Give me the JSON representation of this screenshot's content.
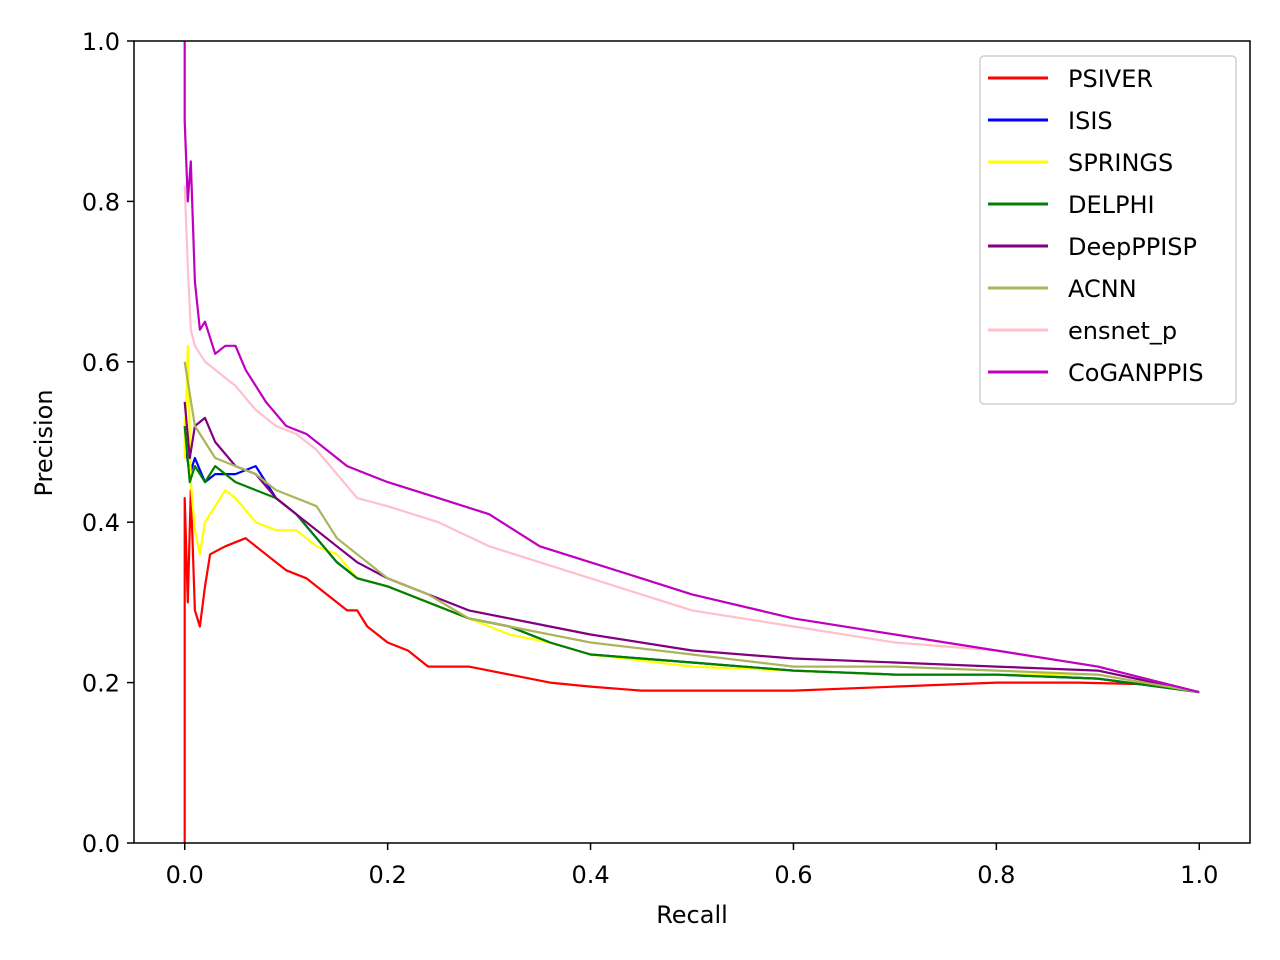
{
  "chart_data": {
    "type": "line",
    "title": "",
    "xlabel": "Recall",
    "ylabel": "Precision",
    "xlim": [
      -0.05,
      1.05
    ],
    "ylim": [
      0.0,
      1.0
    ],
    "xticks": [
      "0.0",
      "0.2",
      "0.4",
      "0.6",
      "0.8",
      "1.0"
    ],
    "yticks": [
      "0.0",
      "0.2",
      "0.4",
      "0.6",
      "0.8",
      "1.0"
    ],
    "grid": false,
    "legend_position": "top-right",
    "series": [
      {
        "name": "PSIVER",
        "color": "#ff0000",
        "points": [
          [
            0.0,
            0.0
          ],
          [
            0.0,
            0.43
          ],
          [
            0.003,
            0.3
          ],
          [
            0.006,
            0.44
          ],
          [
            0.01,
            0.29
          ],
          [
            0.015,
            0.27
          ],
          [
            0.02,
            0.32
          ],
          [
            0.025,
            0.36
          ],
          [
            0.04,
            0.37
          ],
          [
            0.06,
            0.38
          ],
          [
            0.08,
            0.36
          ],
          [
            0.1,
            0.34
          ],
          [
            0.12,
            0.33
          ],
          [
            0.14,
            0.31
          ],
          [
            0.16,
            0.29
          ],
          [
            0.17,
            0.29
          ],
          [
            0.18,
            0.27
          ],
          [
            0.2,
            0.25
          ],
          [
            0.22,
            0.24
          ],
          [
            0.24,
            0.22
          ],
          [
            0.28,
            0.22
          ],
          [
            0.32,
            0.21
          ],
          [
            0.36,
            0.2
          ],
          [
            0.4,
            0.195
          ],
          [
            0.45,
            0.19
          ],
          [
            0.5,
            0.19
          ],
          [
            0.55,
            0.19
          ],
          [
            0.6,
            0.19
          ],
          [
            0.7,
            0.195
          ],
          [
            0.8,
            0.2
          ],
          [
            0.88,
            0.2
          ],
          [
            0.95,
            0.198
          ],
          [
            1.0,
            0.188
          ]
        ]
      },
      {
        "name": "ISIS",
        "color": "#0000ff",
        "points": [
          [
            0.0,
            0.5
          ],
          [
            0.005,
            0.46
          ],
          [
            0.01,
            0.48
          ],
          [
            0.02,
            0.45
          ],
          [
            0.03,
            0.46
          ],
          [
            0.05,
            0.46
          ],
          [
            0.07,
            0.47
          ],
          [
            0.09,
            0.43
          ],
          [
            0.11,
            0.41
          ],
          [
            0.13,
            0.38
          ],
          [
            0.15,
            0.35
          ],
          [
            0.17,
            0.33
          ],
          [
            0.2,
            0.32
          ],
          [
            0.24,
            0.3
          ],
          [
            0.28,
            0.28
          ],
          [
            0.32,
            0.27
          ],
          [
            0.36,
            0.25
          ],
          [
            0.4,
            0.235
          ],
          [
            0.5,
            0.225
          ],
          [
            0.6,
            0.215
          ],
          [
            0.7,
            0.21
          ],
          [
            0.8,
            0.21
          ],
          [
            0.9,
            0.205
          ],
          [
            1.0,
            0.188
          ]
        ]
      },
      {
        "name": "SPRINGS",
        "color": "#ffff00",
        "points": [
          [
            0.0,
            0.53
          ],
          [
            0.0,
            0.48
          ],
          [
            0.003,
            0.62
          ],
          [
            0.006,
            0.45
          ],
          [
            0.01,
            0.39
          ],
          [
            0.015,
            0.36
          ],
          [
            0.02,
            0.4
          ],
          [
            0.03,
            0.42
          ],
          [
            0.04,
            0.44
          ],
          [
            0.05,
            0.43
          ],
          [
            0.07,
            0.4
          ],
          [
            0.09,
            0.39
          ],
          [
            0.11,
            0.39
          ],
          [
            0.13,
            0.37
          ],
          [
            0.15,
            0.36
          ],
          [
            0.17,
            0.33
          ],
          [
            0.2,
            0.32
          ],
          [
            0.24,
            0.3
          ],
          [
            0.28,
            0.28
          ],
          [
            0.32,
            0.26
          ],
          [
            0.36,
            0.25
          ],
          [
            0.4,
            0.235
          ],
          [
            0.5,
            0.22
          ],
          [
            0.6,
            0.215
          ],
          [
            0.7,
            0.21
          ],
          [
            0.8,
            0.21
          ],
          [
            0.9,
            0.21
          ],
          [
            1.0,
            0.188
          ]
        ]
      },
      {
        "name": "DELPHI",
        "color": "#008000",
        "points": [
          [
            0.0,
            0.52
          ],
          [
            0.005,
            0.45
          ],
          [
            0.01,
            0.47
          ],
          [
            0.02,
            0.45
          ],
          [
            0.03,
            0.47
          ],
          [
            0.05,
            0.45
          ],
          [
            0.07,
            0.44
          ],
          [
            0.09,
            0.43
          ],
          [
            0.11,
            0.41
          ],
          [
            0.13,
            0.38
          ],
          [
            0.15,
            0.35
          ],
          [
            0.17,
            0.33
          ],
          [
            0.2,
            0.32
          ],
          [
            0.24,
            0.3
          ],
          [
            0.28,
            0.28
          ],
          [
            0.32,
            0.27
          ],
          [
            0.36,
            0.25
          ],
          [
            0.4,
            0.235
          ],
          [
            0.5,
            0.225
          ],
          [
            0.6,
            0.215
          ],
          [
            0.7,
            0.21
          ],
          [
            0.8,
            0.21
          ],
          [
            0.9,
            0.205
          ],
          [
            1.0,
            0.188
          ]
        ]
      },
      {
        "name": "DeepPPISP",
        "color": "#800080",
        "points": [
          [
            0.0,
            0.55
          ],
          [
            0.005,
            0.48
          ],
          [
            0.01,
            0.52
          ],
          [
            0.02,
            0.53
          ],
          [
            0.03,
            0.5
          ],
          [
            0.05,
            0.47
          ],
          [
            0.07,
            0.46
          ],
          [
            0.09,
            0.43
          ],
          [
            0.11,
            0.41
          ],
          [
            0.13,
            0.39
          ],
          [
            0.15,
            0.37
          ],
          [
            0.17,
            0.35
          ],
          [
            0.2,
            0.33
          ],
          [
            0.24,
            0.31
          ],
          [
            0.28,
            0.29
          ],
          [
            0.32,
            0.28
          ],
          [
            0.36,
            0.27
          ],
          [
            0.4,
            0.26
          ],
          [
            0.5,
            0.24
          ],
          [
            0.6,
            0.23
          ],
          [
            0.7,
            0.225
          ],
          [
            0.8,
            0.22
          ],
          [
            0.9,
            0.215
          ],
          [
            1.0,
            0.188
          ]
        ]
      },
      {
        "name": "ACNN",
        "color": "#aab55a",
        "points": [
          [
            0.0,
            0.6
          ],
          [
            0.005,
            0.56
          ],
          [
            0.01,
            0.52
          ],
          [
            0.02,
            0.5
          ],
          [
            0.03,
            0.48
          ],
          [
            0.05,
            0.47
          ],
          [
            0.07,
            0.46
          ],
          [
            0.09,
            0.44
          ],
          [
            0.11,
            0.43
          ],
          [
            0.13,
            0.42
          ],
          [
            0.15,
            0.38
          ],
          [
            0.17,
            0.36
          ],
          [
            0.2,
            0.33
          ],
          [
            0.24,
            0.31
          ],
          [
            0.28,
            0.28
          ],
          [
            0.32,
            0.27
          ],
          [
            0.36,
            0.26
          ],
          [
            0.4,
            0.25
          ],
          [
            0.5,
            0.235
          ],
          [
            0.6,
            0.22
          ],
          [
            0.7,
            0.22
          ],
          [
            0.8,
            0.215
          ],
          [
            0.9,
            0.21
          ],
          [
            1.0,
            0.188
          ]
        ]
      },
      {
        "name": "ensnet_p",
        "color": "#ffc0cb",
        "points": [
          [
            0.0,
            0.82
          ],
          [
            0.003,
            0.72
          ],
          [
            0.006,
            0.64
          ],
          [
            0.01,
            0.62
          ],
          [
            0.02,
            0.6
          ],
          [
            0.03,
            0.59
          ],
          [
            0.05,
            0.57
          ],
          [
            0.07,
            0.54
          ],
          [
            0.09,
            0.52
          ],
          [
            0.11,
            0.51
          ],
          [
            0.13,
            0.49
          ],
          [
            0.15,
            0.46
          ],
          [
            0.17,
            0.43
          ],
          [
            0.2,
            0.42
          ],
          [
            0.25,
            0.4
          ],
          [
            0.3,
            0.37
          ],
          [
            0.35,
            0.35
          ],
          [
            0.4,
            0.33
          ],
          [
            0.45,
            0.31
          ],
          [
            0.5,
            0.29
          ],
          [
            0.6,
            0.27
          ],
          [
            0.7,
            0.25
          ],
          [
            0.8,
            0.24
          ],
          [
            0.9,
            0.22
          ],
          [
            1.0,
            0.188
          ]
        ]
      },
      {
        "name": "CoGANPPIS",
        "color": "#bf00bf",
        "points": [
          [
            0.0,
            1.0
          ],
          [
            0.0,
            0.9
          ],
          [
            0.003,
            0.8
          ],
          [
            0.006,
            0.85
          ],
          [
            0.01,
            0.7
          ],
          [
            0.015,
            0.64
          ],
          [
            0.02,
            0.65
          ],
          [
            0.03,
            0.61
          ],
          [
            0.04,
            0.62
          ],
          [
            0.05,
            0.62
          ],
          [
            0.06,
            0.59
          ],
          [
            0.08,
            0.55
          ],
          [
            0.1,
            0.52
          ],
          [
            0.12,
            0.51
          ],
          [
            0.14,
            0.49
          ],
          [
            0.16,
            0.47
          ],
          [
            0.18,
            0.46
          ],
          [
            0.2,
            0.45
          ],
          [
            0.25,
            0.43
          ],
          [
            0.3,
            0.41
          ],
          [
            0.35,
            0.37
          ],
          [
            0.4,
            0.35
          ],
          [
            0.45,
            0.33
          ],
          [
            0.5,
            0.31
          ],
          [
            0.6,
            0.28
          ],
          [
            0.7,
            0.26
          ],
          [
            0.8,
            0.24
          ],
          [
            0.9,
            0.22
          ],
          [
            1.0,
            0.188
          ]
        ]
      }
    ]
  }
}
